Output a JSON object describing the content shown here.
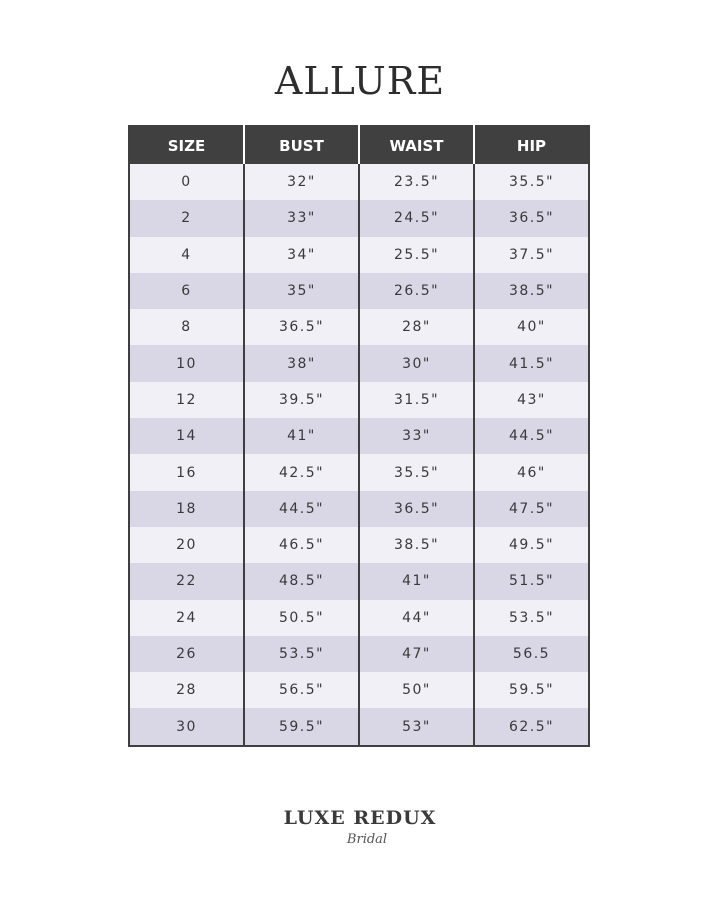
{
  "title": "ALLURE",
  "table": {
    "headers": [
      "SIZE",
      "BUST",
      "WAIST",
      "HIP"
    ],
    "rows": [
      [
        "0",
        "32\"",
        "23.5\"",
        "35.5\""
      ],
      [
        "2",
        "33\"",
        "24.5\"",
        "36.5\""
      ],
      [
        "4",
        "34\"",
        "25.5\"",
        "37.5\""
      ],
      [
        "6",
        "35\"",
        "26.5\"",
        "38.5\""
      ],
      [
        "8",
        "36.5\"",
        "28\"",
        "40\""
      ],
      [
        "10",
        "38\"",
        "30\"",
        "41.5\""
      ],
      [
        "12",
        "39.5\"",
        "31.5\"",
        "43\""
      ],
      [
        "14",
        "41\"",
        "33\"",
        "44.5\""
      ],
      [
        "16",
        "42.5\"",
        "35.5\"",
        "46\""
      ],
      [
        "18",
        "44.5\"",
        "36.5\"",
        "47.5\""
      ],
      [
        "20",
        "46.5\"",
        "38.5\"",
        "49.5\""
      ],
      [
        "22",
        "48.5\"",
        "41\"",
        "51.5\""
      ],
      [
        "24",
        "50.5\"",
        "44\"",
        "53.5\""
      ],
      [
        "26",
        "53.5\"",
        "47\"",
        "56.5"
      ],
      [
        "28",
        "56.5\"",
        "50\"",
        "59.5\""
      ],
      [
        "30",
        "59.5\"",
        "53\"",
        "62.5\""
      ]
    ]
  },
  "logo": {
    "main": "LUXE REDUX",
    "sub": "Bridal"
  },
  "colors": {
    "header_bg": "#404040",
    "row_light": "#f1f0f6",
    "row_dark": "#d9d7e6"
  }
}
